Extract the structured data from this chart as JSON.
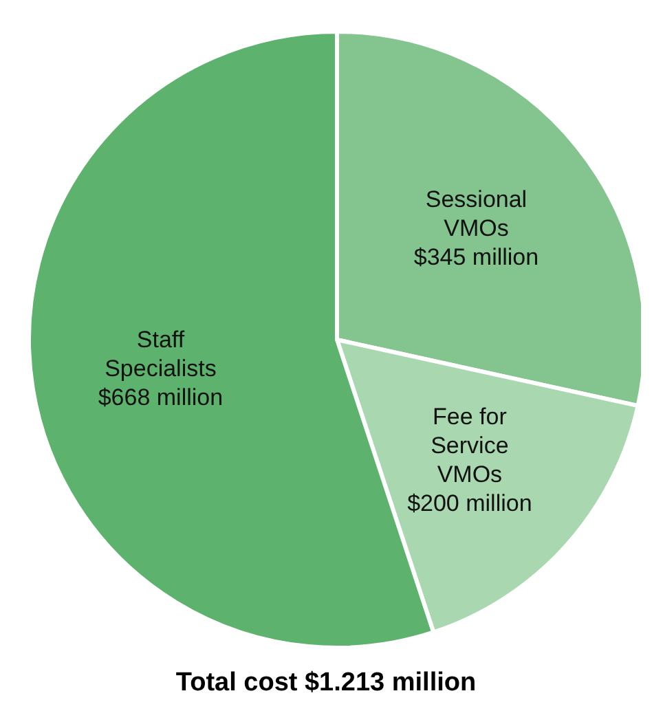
{
  "chart_data": {
    "type": "pie",
    "title": "Total cost $1.213 million",
    "categories": [
      "Sessional VMOs",
      "Fee for Service VMOs",
      "Staff Specialists"
    ],
    "values": [
      345,
      200,
      668
    ],
    "colors": [
      "#84c48f",
      "#a9d8b0",
      "#5db36d"
    ],
    "value_labels": [
      "$345 million",
      "$200 million",
      "$668 million"
    ]
  }
}
